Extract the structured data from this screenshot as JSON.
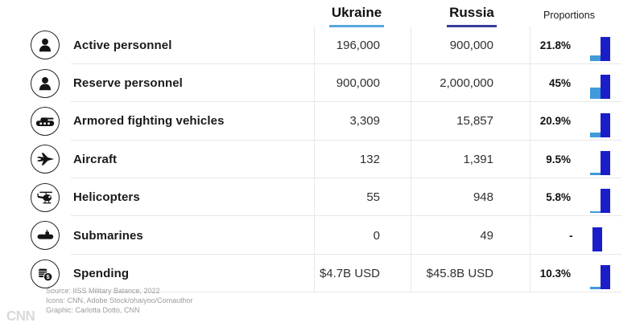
{
  "header": {
    "ukraine_label": "Ukraine",
    "russia_label": "Russia",
    "proportions_label": "Proportions"
  },
  "colors": {
    "ukraine_underline": "#57A8DF",
    "ukraine_bar": "#3E9AD8",
    "russia_underline": "#3A3A9F",
    "russia_bar": "#1B1DC9",
    "divider": "#E7E7E7",
    "footer_text": "#9B9B9B"
  },
  "rows": [
    {
      "icon": "soldier-icon",
      "label": "Active personnel",
      "ukraine": "196,000",
      "russia": "900,000",
      "proportion": "21.8%",
      "proportion_value": 21.8
    },
    {
      "icon": "soldier-icon",
      "label": "Reserve personnel",
      "ukraine": "900,000",
      "russia": "2,000,000",
      "proportion": "45%",
      "proportion_value": 45
    },
    {
      "icon": "tank-icon",
      "label": "Armored fighting vehicles",
      "ukraine": "3,309",
      "russia": "15,857",
      "proportion": "20.9%",
      "proportion_value": 20.9
    },
    {
      "icon": "fighter-jet-icon",
      "label": "Aircraft",
      "ukraine": "132",
      "russia": "1,391",
      "proportion": "9.5%",
      "proportion_value": 9.5
    },
    {
      "icon": "helicopter-icon",
      "label": "Helicopters",
      "ukraine": "55",
      "russia": "948",
      "proportion": "5.8%",
      "proportion_value": 5.8
    },
    {
      "icon": "submarine-icon",
      "label": "Submarines",
      "ukraine": "0",
      "russia": "49",
      "proportion": "-",
      "proportion_value": null
    },
    {
      "icon": "money-icon",
      "label": "Spending",
      "ukraine": "$4.7B USD",
      "russia": "$45.8B USD",
      "proportion": "10.3%",
      "proportion_value": 10.3
    }
  ],
  "footer": {
    "source_line": "Source: IISS Military Balance, 2022",
    "icons_line": "Icons: CNN, Adobe Stock/ohaiyoo/Comauthor",
    "graphic_line": "Graphic: Carlotta Dotto, CNN",
    "logo": "CNN"
  },
  "chart_data": {
    "type": "table",
    "title": "",
    "categories": [
      "Active personnel",
      "Reserve personnel",
      "Armored fighting vehicles",
      "Aircraft",
      "Helicopters",
      "Submarines",
      "Spending"
    ],
    "series": [
      {
        "name": "Ukraine",
        "values": [
          196000,
          900000,
          3309,
          132,
          55,
          0,
          "4.7B USD"
        ]
      },
      {
        "name": "Russia",
        "values": [
          900000,
          2000000,
          15857,
          1391,
          948,
          49,
          "45.8B USD"
        ]
      }
    ],
    "proportions_percent": [
      21.8,
      45,
      20.9,
      9.5,
      5.8,
      null,
      10.3
    ],
    "mini_bar_charts": {
      "full_bar": "Russia = 100%",
      "partial_bar": "Ukraine as % of Russia",
      "full_bar_color": "#1B1DC9",
      "partial_bar_color": "#3E9AD8"
    },
    "legend_position": "top",
    "grid": false
  }
}
